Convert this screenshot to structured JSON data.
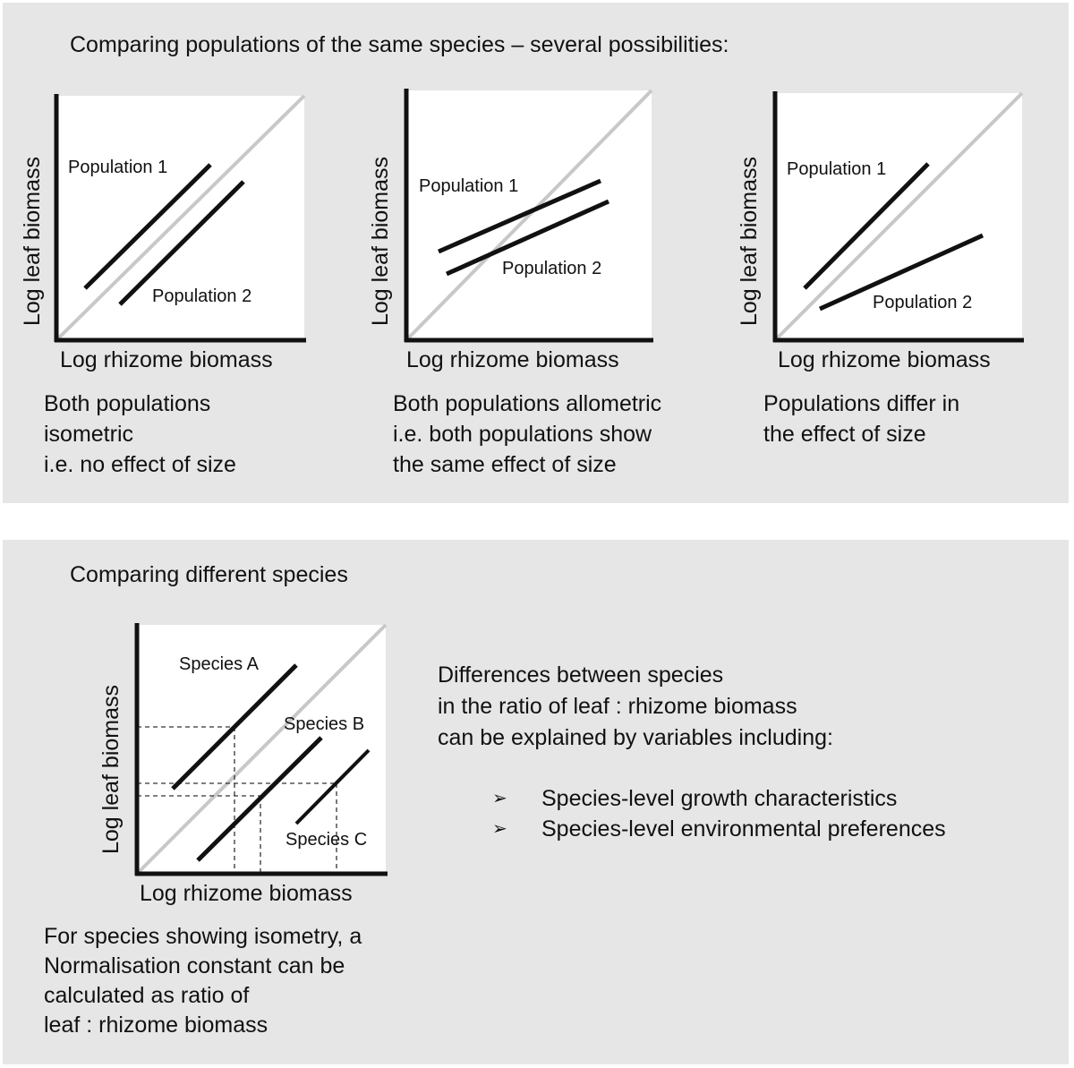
{
  "top": {
    "heading": "Comparing populations of the same species – several possibilities:",
    "x_axis_label": "Log rhizome biomass",
    "y_axis_label": "Log leaf biomass",
    "panels": [
      {
        "label_1": "Population 1",
        "label_2": "Population 2",
        "caption": [
          "Both populations",
          "isometric",
          "i.e. no effect of size"
        ]
      },
      {
        "label_1": "Population 1",
        "label_2": "Population 2",
        "caption": [
          "Both populations allometric",
          "i.e. both populations show",
          "the same effect of size"
        ]
      },
      {
        "label_1": "Population 1",
        "label_2": "Population 2",
        "caption": [
          "Populations differ in",
          "the effect of size"
        ]
      }
    ]
  },
  "bottom": {
    "heading": "Comparing different species",
    "x_axis_label": "Log rhizome biomass",
    "y_axis_label": "Log leaf biomass",
    "species": [
      "Species A",
      "Species B",
      "Species C"
    ],
    "caption": [
      "For species showing isometry, a",
      "Normalisation constant can be",
      "calculated as ratio of",
      "leaf : rhizome biomass"
    ],
    "differences_text": [
      "Differences between species",
      "in the ratio of leaf : rhizome biomass",
      "can be explained by variables including:"
    ],
    "bullet_marker": "➢",
    "bullets": [
      "Species-level growth characteristics",
      "Species-level environmental preferences"
    ]
  },
  "colors": {
    "panel_bg": "#e6e6e6",
    "plot_bg": "#ffffff",
    "isometry_line": "#c8c8c8",
    "line": "#111111"
  }
}
